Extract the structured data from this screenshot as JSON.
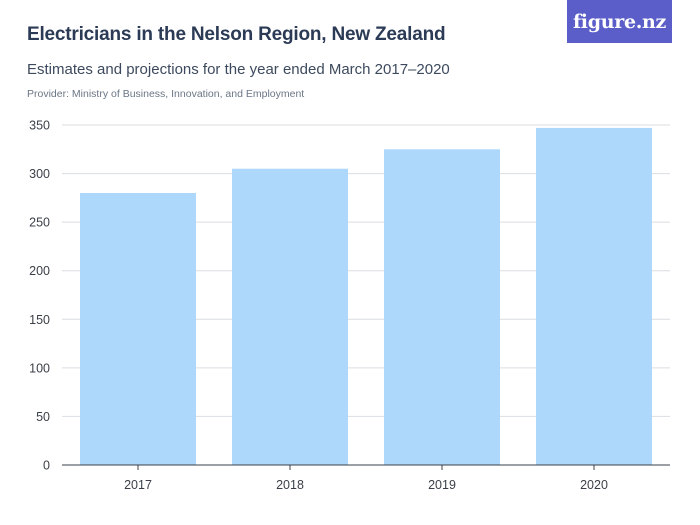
{
  "header": {
    "title": "Electricians in the Nelson Region, New Zealand",
    "subtitle": "Estimates and projections for the year ended March 2017–2020",
    "provider": "Provider: Ministry of Business, Innovation, and Employment"
  },
  "logo": {
    "text": "figure.nz",
    "color": "#5b5ec9"
  },
  "chart_data": {
    "type": "bar",
    "title": "Electricians in the Nelson Region, New Zealand",
    "subtitle": "Estimates and projections for the year ended March 2017–2020",
    "categories": [
      "2017",
      "2018",
      "2019",
      "2020"
    ],
    "values": [
      280,
      305,
      325,
      347
    ],
    "xlabel": "",
    "ylabel": "",
    "ylim": [
      0,
      350
    ],
    "yticks": [
      0,
      50,
      100,
      150,
      200,
      250,
      300,
      350
    ],
    "grid": true,
    "legend": "none",
    "bar_color": "#add8fb"
  }
}
